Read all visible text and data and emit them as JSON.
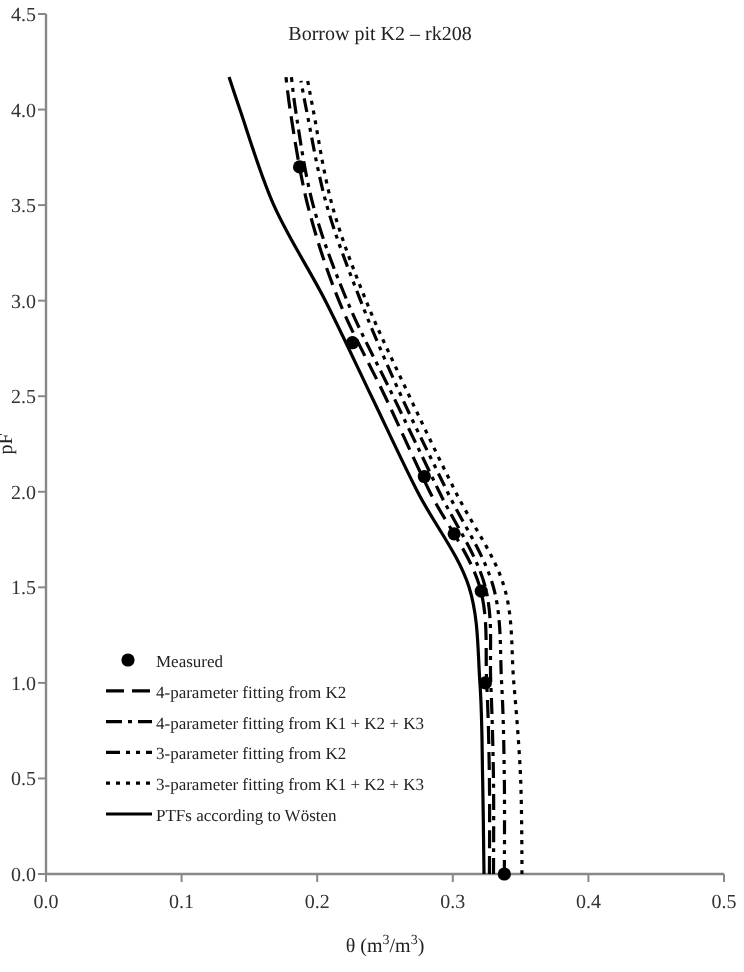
{
  "chart_data": {
    "type": "line",
    "title": "Borrow pit K2 – rk208",
    "xlabel": "θ (m$^{3}$/m$^{3}$)",
    "ylabel": "pF",
    "xlim": [
      0,
      0.5
    ],
    "xticks": [
      {
        "value": 0,
        "label": "0.0"
      },
      0.1,
      0.2,
      0.3,
      0.4,
      0.5
    ],
    "ylim": [
      0,
      4.5
    ],
    "yticks": [
      {
        "value": 0,
        "label": "0.0"
      },
      0.5,
      {
        "value": 1,
        "label": "1.0"
      },
      1.5,
      {
        "value": 2,
        "label": "2.0"
      },
      2.5,
      {
        "value": 3,
        "label": "3.0"
      },
      3.5,
      {
        "value": 4,
        "label": "4.0"
      },
      4.5
    ],
    "grid": false,
    "legend": "bottom left",
    "series": [
      {
        "name": "Measured",
        "type": "scatter",
        "marker": "circle",
        "color": "#000000",
        "x": [
          0.338,
          0.324,
          0.321,
          0.301,
          0.279,
          0.226,
          0.187
        ],
        "values": [
          0,
          1.0,
          1.48,
          1.78,
          2.08,
          2.78,
          3.7
        ]
      },
      {
        "name": "4-parameter fitting from K2",
        "line_style": "dashed",
        "color": "#000000",
        "x": [
          0.327,
          0.327,
          0.325,
          0.32,
          0.283,
          0.25,
          0.216,
          0.193,
          0.18,
          0.177
        ],
        "values": [
          0,
          0.5,
          1.0,
          1.5,
          2.0,
          2.5,
          3.0,
          3.5,
          4.0,
          4.17
        ]
      },
      {
        "name": "4-parameter fitting from K1 + K2 + K3",
        "line_style": "dashed",
        "color": "#000000",
        "x": [
          0.33,
          0.33,
          0.328,
          0.324,
          0.29,
          0.256,
          0.222,
          0.197,
          0.184,
          0.181
        ],
        "values": [
          0,
          0.5,
          1.0,
          1.5,
          2.0,
          2.5,
          3.0,
          3.5,
          4.0,
          4.17
        ]
      },
      {
        "name": "3-parameter fitting from K2",
        "line_style": "dashed",
        "color": "#000000",
        "x": [
          0.338,
          0.338,
          0.336,
          0.33,
          0.296,
          0.262,
          0.232,
          0.207,
          0.192,
          0.188
        ],
        "values": [
          0,
          0.5,
          1.0,
          1.5,
          2.0,
          2.5,
          3.0,
          3.5,
          4.0,
          4.15
        ]
      },
      {
        "name": "3-parameter fitting from K1 + K2 + K3",
        "line_style": "dotted",
        "color": "#000000",
        "x": [
          0.351,
          0.35,
          0.345,
          0.338,
          0.302,
          0.268,
          0.236,
          0.211,
          0.197,
          0.193
        ],
        "values": [
          0,
          0.5,
          1.0,
          1.5,
          2.0,
          2.5,
          3.0,
          3.5,
          4.0,
          4.15
        ]
      },
      {
        "name": "PTFs according to Wösten",
        "line_style": "solid",
        "color": "#000000",
        "x": [
          0.323,
          0.322,
          0.32,
          0.312,
          0.274,
          0.24,
          0.206,
          0.168,
          0.143,
          0.135
        ],
        "values": [
          0,
          0.5,
          1.0,
          1.5,
          2.0,
          2.5,
          3.0,
          3.5,
          4.0,
          4.17
        ]
      }
    ]
  }
}
